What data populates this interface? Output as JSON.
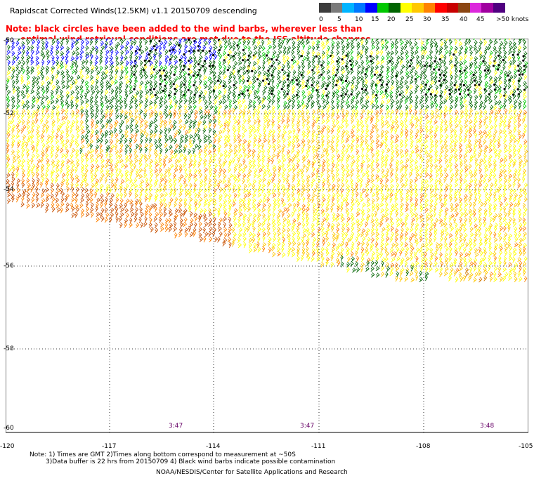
{
  "title": "Rapidscat Corrected Winds(12.5KM) v1.1 20150709 descending",
  "note_line1": "Note: black circles have been added to the wind barbs, wherever less than",
  "note_line2": "optimal wind retrieval conditions are met due to the ISS altitude changes.",
  "speed_scale": {
    "colors": [
      "#3c3c3c",
      "#7a7a7a",
      "#00b4ff",
      "#0078ff",
      "#0000ff",
      "#00c800",
      "#006400",
      "#ffff00",
      "#ffc800",
      "#ff8200",
      "#ff0000",
      "#c80000",
      "#8b4513",
      "#dc28dc",
      "#a000a0",
      "#500080"
    ],
    "labels": [
      "0",
      "5",
      "10",
      "15",
      "20",
      "25",
      "30",
      "35",
      "40",
      "45",
      ">50 knots"
    ]
  },
  "map": {
    "lon_labels": [
      "-120",
      "-117",
      "-114",
      "-111",
      "-108",
      "-105"
    ],
    "lat_labels": [
      "-50",
      "-52",
      "-54",
      "-56",
      "-58",
      "-60"
    ],
    "time_labels": [
      "3:47",
      "3:47",
      "3:48"
    ]
  },
  "footer": {
    "line1": "Note: 1) Times are GMT 2)Times along bottom correspond to measurement at ~50S",
    "line2": "3)Data buffer is 22 hrs from 20150709 4) Black wind barbs indicate possible contamination",
    "credit": "NOAA/NESDIS/Center for Satellite Applications and Research"
  }
}
